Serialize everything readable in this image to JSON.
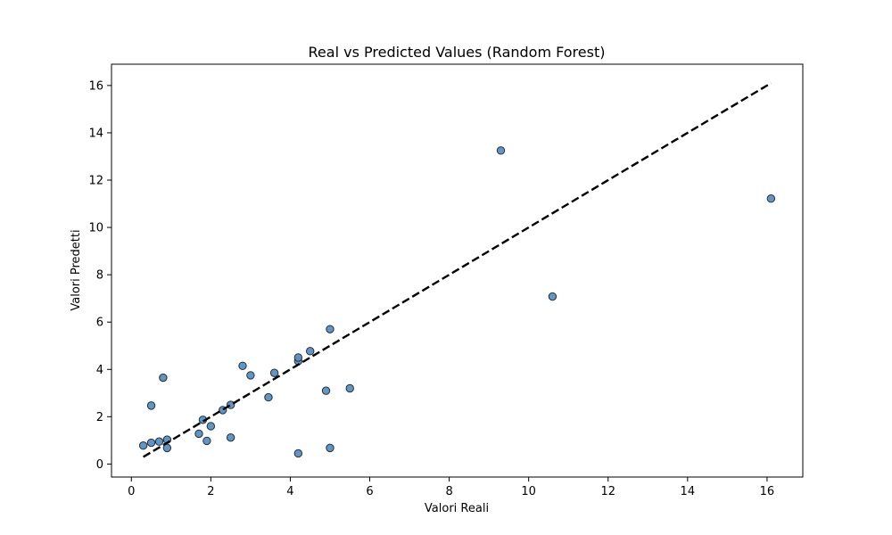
{
  "chart_data": {
    "type": "scatter",
    "title": "Real vs Predicted Values (Random Forest)",
    "xlabel": "Valori Reali",
    "ylabel": "Valori Predetti",
    "xlim": [
      -0.5,
      16.9
    ],
    "ylim": [
      -0.55,
      16.9
    ],
    "xticks": [
      0,
      2,
      4,
      6,
      8,
      10,
      12,
      14,
      16
    ],
    "yticks": [
      0,
      2,
      4,
      6,
      8,
      10,
      12,
      14,
      16
    ],
    "grid": false,
    "point_color": "#5b8fbf",
    "point_edge_color": "#1f2f3f",
    "reference_line": {
      "x": [
        0.3,
        16.1
      ],
      "y": [
        0.3,
        16.1
      ],
      "style": "dashed",
      "color": "#000000"
    },
    "points": [
      {
        "x": 0.3,
        "y": 0.78
      },
      {
        "x": 0.5,
        "y": 0.9
      },
      {
        "x": 0.5,
        "y": 2.47
      },
      {
        "x": 0.7,
        "y": 0.95
      },
      {
        "x": 0.8,
        "y": 3.65
      },
      {
        "x": 0.9,
        "y": 1.03
      },
      {
        "x": 0.9,
        "y": 0.68
      },
      {
        "x": 1.7,
        "y": 1.28
      },
      {
        "x": 1.8,
        "y": 1.87
      },
      {
        "x": 1.9,
        "y": 0.98
      },
      {
        "x": 2.0,
        "y": 1.6
      },
      {
        "x": 2.3,
        "y": 2.28
      },
      {
        "x": 2.5,
        "y": 2.5
      },
      {
        "x": 2.5,
        "y": 1.12
      },
      {
        "x": 2.8,
        "y": 4.15
      },
      {
        "x": 3.0,
        "y": 3.75
      },
      {
        "x": 3.45,
        "y": 2.82
      },
      {
        "x": 3.6,
        "y": 3.85
      },
      {
        "x": 4.2,
        "y": 4.35
      },
      {
        "x": 4.2,
        "y": 4.5
      },
      {
        "x": 4.2,
        "y": 0.45
      },
      {
        "x": 4.5,
        "y": 4.77
      },
      {
        "x": 4.9,
        "y": 3.1
      },
      {
        "x": 5.0,
        "y": 5.7
      },
      {
        "x": 5.0,
        "y": 0.68
      },
      {
        "x": 5.5,
        "y": 3.2
      },
      {
        "x": 9.3,
        "y": 13.25
      },
      {
        "x": 10.6,
        "y": 7.08
      },
      {
        "x": 16.1,
        "y": 11.22
      }
    ]
  }
}
